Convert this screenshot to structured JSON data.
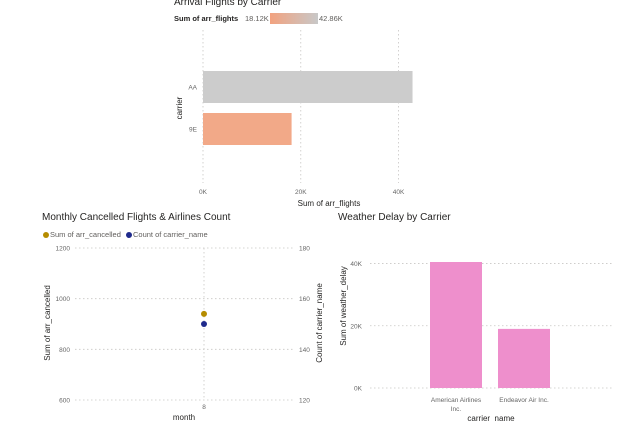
{
  "charts": [
    {
      "title": "Arrival Flights by Carrier",
      "legend": {
        "field": "Sum of arr_flights",
        "min_label": "18.12K",
        "max_label": "42.86K",
        "color_min": "#f2a27f",
        "color_max": "#c8c8c8"
      }
    },
    {
      "title": "Monthly Cancelled Flights & Airlines Count",
      "legend": [
        {
          "label": "Sum of arr_cancelled",
          "color": "#b58c00"
        },
        {
          "label": "Count of carrier_name",
          "color": "#1f2a8c"
        }
      ]
    },
    {
      "title": "Weather Delay by Carrier"
    }
  ],
  "chart_data": [
    {
      "type": "bar",
      "orientation": "horizontal",
      "title": "Arrival Flights by Carrier",
      "categories": [
        "AA",
        "9E"
      ],
      "values": [
        42860,
        18120
      ],
      "colors": [
        "#cccccc",
        "#f2a988"
      ],
      "xlabel": "Sum of arr_flights",
      "ylabel": "carrier",
      "xlim": [
        0,
        45000
      ],
      "xticks": [
        0,
        20000,
        40000
      ],
      "xtick_labels": [
        "0K",
        "20K",
        "40K"
      ]
    },
    {
      "type": "scatter",
      "title": "Monthly Cancelled Flights & Airlines Count",
      "x": [
        8
      ],
      "x_tick_labels": [
        "8"
      ],
      "xlabel": "month",
      "series": [
        {
          "name": "Sum of arr_cancelled",
          "axis": "left",
          "values": [
            940
          ],
          "color": "#b58c00"
        },
        {
          "name": "Count of carrier_name",
          "axis": "right",
          "values": [
            150
          ],
          "color": "#1f2a8c"
        }
      ],
      "ylabel": "Sum of arr_cancelled",
      "ylim": [
        600,
        1200
      ],
      "yticks": [
        600,
        800,
        1000,
        1200
      ],
      "ytick_labels": [
        "600",
        "800",
        "1000",
        "1200"
      ],
      "y2label": "Count of carrier_name",
      "y2lim": [
        120,
        180
      ],
      "y2ticks": [
        120,
        140,
        160,
        180
      ],
      "y2tick_labels": [
        "120",
        "140",
        "160",
        "180"
      ]
    },
    {
      "type": "bar",
      "title": "Weather Delay by Carrier",
      "categories": [
        "American Airlines Inc.",
        "Endeavor Air Inc."
      ],
      "category_label_lines": [
        [
          "American Airlines",
          "Inc."
        ],
        [
          "Endeavor Air Inc."
        ]
      ],
      "values": [
        40500,
        19000
      ],
      "color": "#ee8fcc",
      "xlabel": "carrier_name",
      "ylabel": "Sum of weather_delay",
      "ylim": [
        0,
        45000
      ],
      "yticks": [
        0,
        20000,
        40000
      ],
      "ytick_labels": [
        "0K",
        "20K",
        "40K"
      ]
    }
  ]
}
